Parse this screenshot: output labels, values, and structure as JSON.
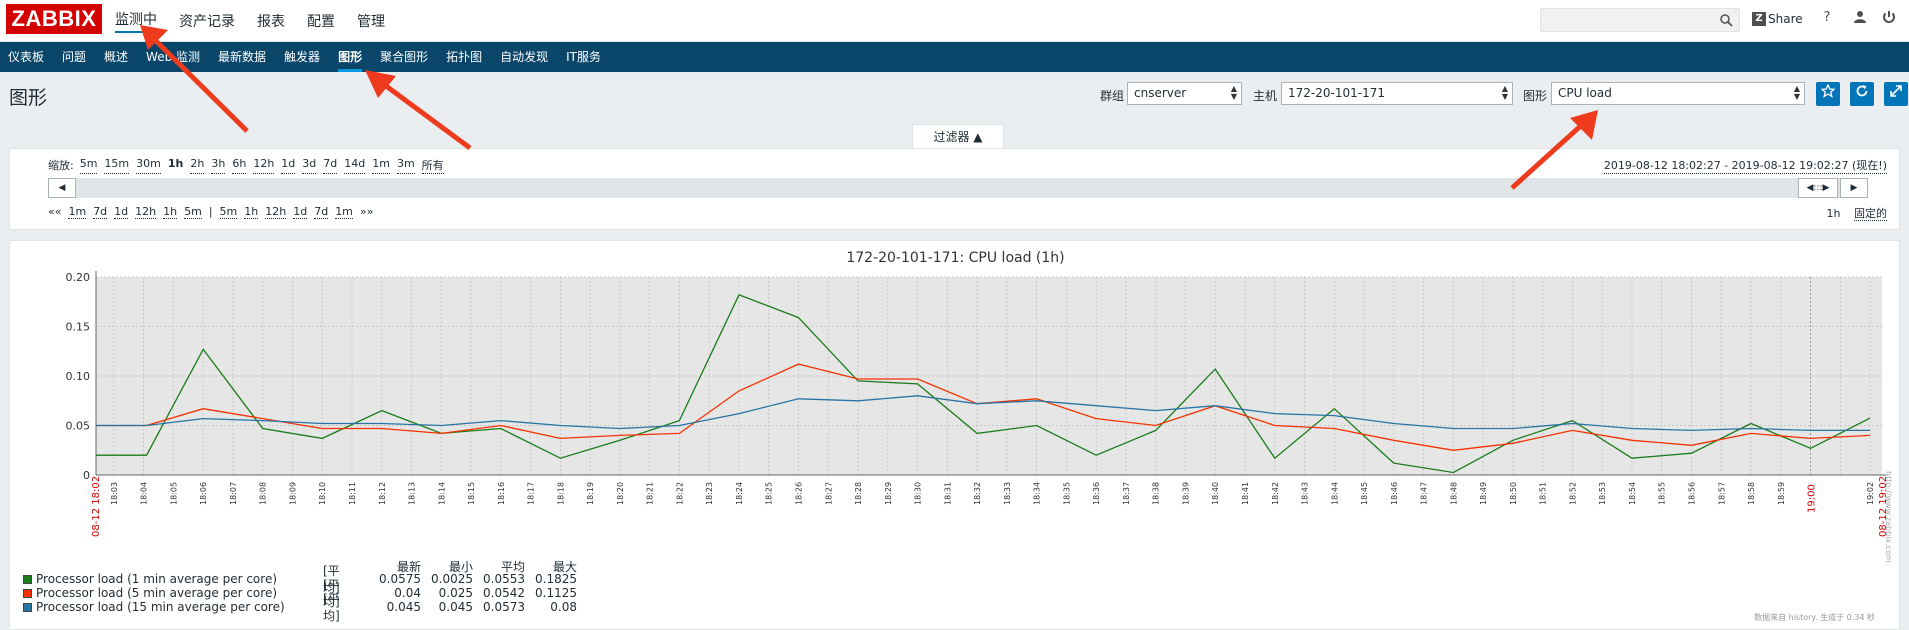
{
  "header": {
    "logo": "ZABBIX",
    "top_menu": [
      {
        "label": "监测中",
        "active": true
      },
      {
        "label": "资产记录",
        "active": false
      },
      {
        "label": "报表",
        "active": false
      },
      {
        "label": "配置",
        "active": false
      },
      {
        "label": "管理",
        "active": false
      }
    ],
    "share_label": "Share",
    "share_badge": "Z",
    "icons": [
      "help-icon",
      "user-icon",
      "logout-icon"
    ],
    "search_placeholder": ""
  },
  "sub_nav": [
    {
      "label": "仪表板",
      "active": false
    },
    {
      "label": "问题",
      "active": false
    },
    {
      "label": "概述",
      "active": false
    },
    {
      "label": "Web 监测",
      "active": false
    },
    {
      "label": "最新数据",
      "active": false
    },
    {
      "label": "触发器",
      "active": false
    },
    {
      "label": "图形",
      "active": true
    },
    {
      "label": "聚合图形",
      "active": false
    },
    {
      "label": "拓扑图",
      "active": false
    },
    {
      "label": "自动发现",
      "active": false
    },
    {
      "label": "IT服务",
      "active": false
    }
  ],
  "page": {
    "title": "图形",
    "group_label": "群组",
    "group_value": "cnserver",
    "host_label": "主机",
    "host_value": "172-20-101-171",
    "graph_label": "图形",
    "graph_value": "CPU load"
  },
  "filter": {
    "tab_label": "过滤器 ▲",
    "zoom_label": "缩放:",
    "zoom_options": [
      "5m",
      "15m",
      "30m",
      "1h",
      "2h",
      "3h",
      "6h",
      "12h",
      "1d",
      "3d",
      "7d",
      "14d",
      "1m",
      "3m",
      "所有"
    ],
    "zoom_selected": "1h",
    "range_text": "2019-08-12 18:02:27 - 2019-08-12 19:02:27 (现在!)",
    "nav_back": [
      "««",
      "1m",
      "7d",
      "1d",
      "12h",
      "1h",
      "5m"
    ],
    "nav_fwd": [
      "5m",
      "1h",
      "12h",
      "1d",
      "7d",
      "1m",
      "»»"
    ],
    "period": "1h",
    "fixed": "固定的"
  },
  "graph": {
    "title": "172-20-101-171: CPU load (1h)",
    "legend_headers": [
      "最新",
      "最小",
      "平均",
      "最大"
    ],
    "legend": [
      {
        "name": "Processor load (1 min average per core)",
        "tag": "[平均]",
        "color": "#1a7c1a",
        "last": "0.0575",
        "min": "0.0025",
        "avg": "0.0553",
        "max": "0.1825"
      },
      {
        "name": "Processor load (5 min average per core)",
        "tag": "[平均]",
        "color": "#f63100",
        "last": "0.04",
        "min": "0.025",
        "avg": "0.0542",
        "max": "0.1125"
      },
      {
        "name": "Processor load (15 min average per core)",
        "tag": "[平均]",
        "color": "#2774a4",
        "last": "0.045",
        "min": "0.045",
        "avg": "0.0573",
        "max": "0.08"
      }
    ],
    "footnote": "数据来自 history. 生成于 0.34 秒",
    "watermark": "http://www.zabbix.com"
  },
  "chart_data": {
    "type": "line",
    "title": "172-20-101-171: CPU load (1h)",
    "ylim": [
      0,
      0.2
    ],
    "yticks": [
      "0",
      "0.05",
      "0.10",
      "0.15",
      "0.20"
    ],
    "x": [
      "18:03",
      "18:04",
      "18:05",
      "18:06",
      "18:07",
      "18:08",
      "18:09",
      "18:10",
      "18:11",
      "18:12",
      "18:13",
      "18:14",
      "18:15",
      "18:16",
      "18:17",
      "18:18",
      "18:19",
      "18:20",
      "18:21",
      "18:22",
      "18:23",
      "18:24",
      "18:25",
      "18:26",
      "18:27",
      "18:28",
      "18:29",
      "18:30",
      "18:31",
      "18:32",
      "18:33",
      "18:34",
      "18:35",
      "18:36",
      "18:37",
      "18:38",
      "18:39",
      "18:40",
      "18:41",
      "18:42",
      "18:43",
      "18:44",
      "18:45",
      "18:46",
      "18:47",
      "18:48",
      "18:49",
      "18:50",
      "18:51",
      "18:52",
      "18:53",
      "18:54",
      "18:55",
      "18:56",
      "18:57",
      "18:58",
      "18:59",
      "19:00",
      "19:01",
      "19:02"
    ],
    "x_edge_labels": [
      "08-12 18:02",
      "19:00",
      "08-12 19:02"
    ],
    "series": [
      {
        "name": "Processor load (1 min average per core)",
        "color": "#1a7c1a",
        "points": [
          [
            0,
            0.02
          ],
          [
            1.7,
            0.02
          ],
          [
            3.6,
            0.127
          ],
          [
            5.6,
            0.047
          ],
          [
            7.6,
            0.037
          ],
          [
            9.6,
            0.065
          ],
          [
            11.6,
            0.042
          ],
          [
            13.6,
            0.047
          ],
          [
            15.6,
            0.017
          ],
          [
            17.6,
            0.035
          ],
          [
            19.6,
            0.055
          ],
          [
            21.6,
            0.182
          ],
          [
            23.6,
            0.159
          ],
          [
            25.6,
            0.095
          ],
          [
            27.6,
            0.092
          ],
          [
            29.6,
            0.042
          ],
          [
            31.6,
            0.05
          ],
          [
            33.6,
            0.02
          ],
          [
            35.6,
            0.045
          ],
          [
            37.6,
            0.107
          ],
          [
            39.6,
            0.017
          ],
          [
            41.6,
            0.067
          ],
          [
            43.6,
            0.012
          ],
          [
            45.6,
            0.0025
          ],
          [
            47.6,
            0.035
          ],
          [
            49.6,
            0.055
          ],
          [
            51.6,
            0.017
          ],
          [
            53.6,
            0.022
          ],
          [
            55.6,
            0.052
          ],
          [
            57.6,
            0.027
          ],
          [
            59.6,
            0.0575
          ]
        ]
      },
      {
        "name": "Processor load (5 min average per core)",
        "color": "#f63100",
        "points": [
          [
            0,
            0.05
          ],
          [
            1.7,
            0.05
          ],
          [
            3.6,
            0.067
          ],
          [
            5.6,
            0.057
          ],
          [
            7.6,
            0.047
          ],
          [
            9.6,
            0.047
          ],
          [
            11.6,
            0.042
          ],
          [
            13.6,
            0.05
          ],
          [
            15.6,
            0.037
          ],
          [
            17.6,
            0.04
          ],
          [
            19.6,
            0.042
          ],
          [
            21.6,
            0.085
          ],
          [
            23.6,
            0.112
          ],
          [
            25.6,
            0.097
          ],
          [
            27.6,
            0.097
          ],
          [
            29.6,
            0.072
          ],
          [
            31.6,
            0.077
          ],
          [
            33.6,
            0.057
          ],
          [
            35.6,
            0.05
          ],
          [
            37.6,
            0.07
          ],
          [
            39.6,
            0.05
          ],
          [
            41.6,
            0.047
          ],
          [
            43.6,
            0.035
          ],
          [
            45.6,
            0.025
          ],
          [
            47.6,
            0.032
          ],
          [
            49.6,
            0.045
          ],
          [
            51.6,
            0.035
          ],
          [
            53.6,
            0.03
          ],
          [
            55.6,
            0.042
          ],
          [
            57.6,
            0.037
          ],
          [
            59.6,
            0.04
          ]
        ]
      },
      {
        "name": "Processor load (15 min average per core)",
        "color": "#2774a4",
        "points": [
          [
            0,
            0.05
          ],
          [
            1.7,
            0.05
          ],
          [
            3.6,
            0.057
          ],
          [
            5.6,
            0.055
          ],
          [
            7.6,
            0.052
          ],
          [
            9.6,
            0.052
          ],
          [
            11.6,
            0.05
          ],
          [
            13.6,
            0.055
          ],
          [
            15.6,
            0.05
          ],
          [
            17.6,
            0.047
          ],
          [
            19.6,
            0.05
          ],
          [
            21.6,
            0.062
          ],
          [
            23.6,
            0.077
          ],
          [
            25.6,
            0.075
          ],
          [
            27.6,
            0.08
          ],
          [
            29.6,
            0.072
          ],
          [
            31.6,
            0.075
          ],
          [
            33.6,
            0.07
          ],
          [
            35.6,
            0.065
          ],
          [
            37.6,
            0.07
          ],
          [
            39.6,
            0.062
          ],
          [
            41.6,
            0.06
          ],
          [
            43.6,
            0.052
          ],
          [
            45.6,
            0.047
          ],
          [
            47.6,
            0.047
          ],
          [
            49.6,
            0.052
          ],
          [
            51.6,
            0.047
          ],
          [
            53.6,
            0.045
          ],
          [
            55.6,
            0.047
          ],
          [
            57.6,
            0.045
          ],
          [
            59.6,
            0.045
          ]
        ]
      }
    ]
  }
}
